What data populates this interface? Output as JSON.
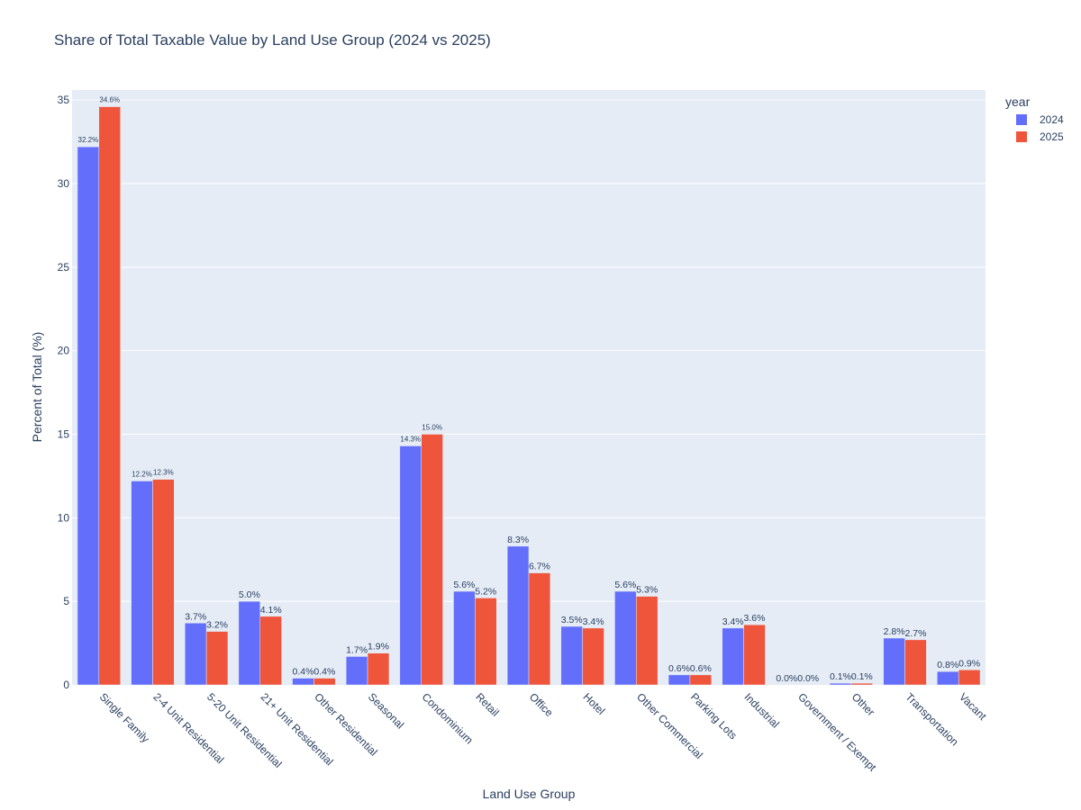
{
  "chart_data": {
    "type": "bar",
    "title": "Share of Total Taxable Value by Land Use Group (2024 vs 2025)",
    "xlabel": "Land Use Group",
    "ylabel": "Percent of Total (%)",
    "ylim": [
      0,
      35.6
    ],
    "yticks": [
      0,
      5,
      10,
      15,
      20,
      25,
      30,
      35
    ],
    "grid": true,
    "legend_title": "year",
    "legend_position": "top-right",
    "categories": [
      "Single Family",
      "2-4 Unit Residential",
      "5-20 Unit Residential",
      "21+ Unit Residential",
      "Other Residential",
      "Seasonal",
      "Condominium",
      "Retail",
      "Office",
      "Hotel",
      "Other Commercial",
      "Parking Lots",
      "Industrial",
      "Government / Exempt",
      "Other",
      "Transportation",
      "Vacant"
    ],
    "series": [
      {
        "name": "2024",
        "color": "#636efa",
        "values": [
          32.2,
          12.2,
          3.7,
          5.0,
          0.4,
          1.7,
          14.3,
          5.6,
          8.3,
          3.5,
          5.6,
          0.6,
          3.4,
          0.0,
          0.1,
          2.8,
          0.8
        ],
        "labels": [
          "32.2%",
          "12.2%",
          "3.7%",
          "5.0%",
          "0.4%",
          "1.7%",
          "14.3%",
          "5.6%",
          "8.3%",
          "3.5%",
          "5.6%",
          "0.6%",
          "3.4%",
          "0.0%",
          "0.1%",
          "2.8%",
          "0.8%"
        ]
      },
      {
        "name": "2025",
        "color": "#ef553b",
        "values": [
          34.6,
          12.3,
          3.2,
          4.1,
          0.4,
          1.9,
          15.0,
          5.2,
          6.7,
          3.4,
          5.3,
          0.6,
          3.6,
          0.0,
          0.1,
          2.7,
          0.9
        ],
        "labels": [
          "34.6%",
          "12.3%",
          "3.2%",
          "4.1%",
          "0.4%",
          "1.9%",
          "15.0%",
          "5.2%",
          "6.7%",
          "3.4%",
          "5.3%",
          "0.6%",
          "3.6%",
          "0.0%",
          "0.1%",
          "2.7%",
          "0.9%"
        ]
      }
    ],
    "colors": {
      "plot_bg": "#e5ecf6",
      "grid": "#ffffff",
      "text": "#2a3f5f"
    }
  }
}
